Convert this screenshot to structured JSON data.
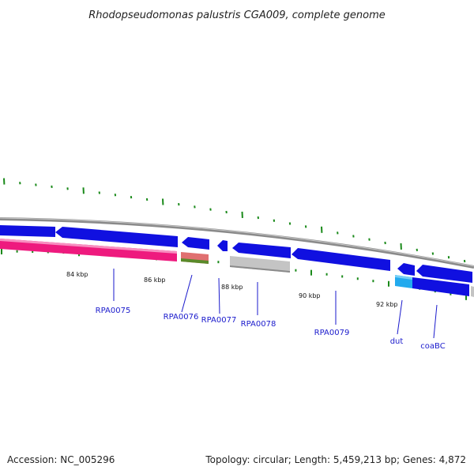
{
  "title": "Rhodopseudomonas palustris CGA009, complete genome",
  "footer": {
    "accession": "Accession: NC_005296",
    "summary": "Topology: circular; Length: 5,459,213 bp; Genes: 4,872"
  },
  "scale_labels": [
    "84 kbp",
    "86 kbp",
    "88 kbp",
    "90 kbp",
    "92 kbp"
  ],
  "genes": [
    {
      "name": "RPA0075"
    },
    {
      "name": "RPA0076"
    },
    {
      "name": "RPA0077"
    },
    {
      "name": "RPA0078"
    },
    {
      "name": "RPA0079"
    },
    {
      "name": "dut"
    },
    {
      "name": "coaBC"
    }
  ],
  "colors": {
    "cds": "#1010e0",
    "gene_pink": "#ee1a7e",
    "gene_gray": "#c4c4c4",
    "gene_cyan": "#22aaee",
    "backbone": "#8a8a8a",
    "gc_ticks": "#1a8a1a",
    "label_blue": "#1a1acc"
  }
}
